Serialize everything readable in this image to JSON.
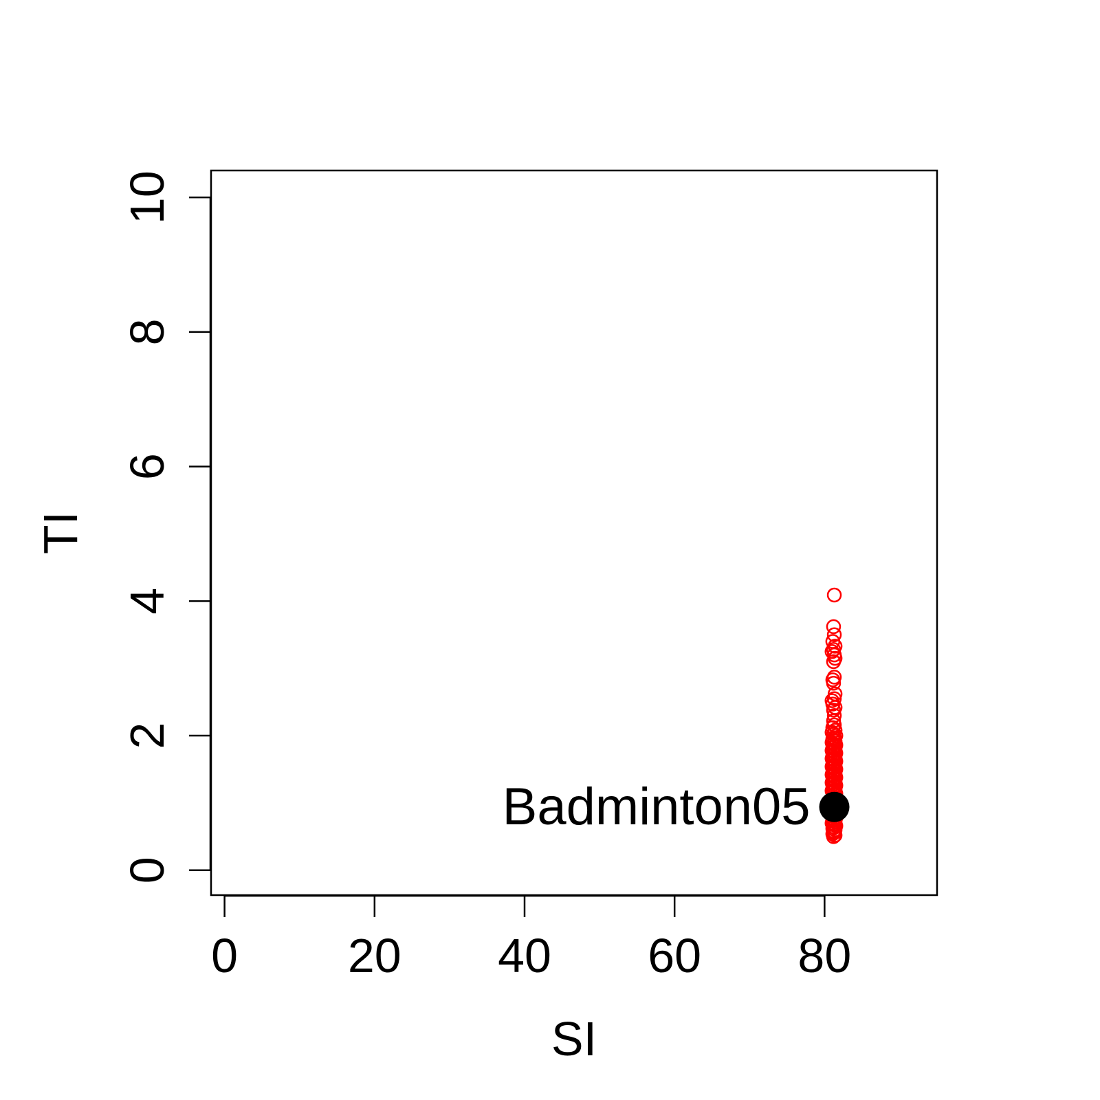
{
  "chart_data": {
    "type": "scatter",
    "title": "",
    "xlabel": "SI",
    "ylabel": "TI",
    "xlim": [
      -1.8,
      95
    ],
    "ylim": [
      -0.37,
      10.4
    ],
    "x_ticks": [
      0,
      20,
      40,
      60,
      80
    ],
    "x_tick_labels": [
      "0",
      "20",
      "40",
      "60",
      "80"
    ],
    "y_ticks": [
      0,
      2,
      4,
      6,
      8,
      10
    ],
    "y_tick_labels": [
      "0",
      "2",
      "4",
      "6",
      "8",
      "10"
    ],
    "grid": false,
    "legend": "none",
    "series": [
      {
        "color": "#ff0000",
        "marker": "open-circle",
        "points": [
          [
            81.3,
            4.09
          ],
          [
            81.2,
            3.62
          ],
          [
            81.3,
            3.5
          ],
          [
            81.1,
            3.4
          ],
          [
            81.4,
            3.33
          ],
          [
            81.2,
            3.28
          ],
          [
            81.0,
            3.25
          ],
          [
            81.3,
            3.2
          ],
          [
            81.4,
            3.15
          ],
          [
            81.2,
            3.1
          ],
          [
            81.3,
            2.87
          ],
          [
            81.1,
            2.83
          ],
          [
            81.2,
            2.78
          ],
          [
            81.4,
            2.62
          ],
          [
            81.3,
            2.55
          ],
          [
            81.0,
            2.52
          ],
          [
            81.1,
            2.47
          ],
          [
            81.4,
            2.42
          ],
          [
            81.2,
            2.38
          ],
          [
            81.3,
            2.3
          ],
          [
            81.2,
            2.22
          ],
          [
            81.3,
            2.16
          ],
          [
            81.1,
            2.12
          ],
          [
            81.4,
            2.08
          ],
          [
            81.0,
            2.05
          ],
          [
            81.2,
            2.02
          ],
          [
            81.5,
            2.0
          ],
          [
            81.3,
            1.97
          ],
          [
            81.1,
            1.95
          ],
          [
            81.4,
            1.92
          ],
          [
            81.0,
            1.9
          ],
          [
            81.2,
            1.88
          ],
          [
            81.5,
            1.86
          ],
          [
            81.3,
            1.84
          ],
          [
            81.1,
            1.82
          ],
          [
            81.4,
            1.8
          ],
          [
            81.0,
            1.78
          ],
          [
            81.2,
            1.76
          ],
          [
            81.5,
            1.74
          ],
          [
            81.3,
            1.72
          ],
          [
            81.1,
            1.7
          ],
          [
            81.4,
            1.68
          ],
          [
            81.0,
            1.66
          ],
          [
            81.2,
            1.64
          ],
          [
            81.5,
            1.62
          ],
          [
            81.3,
            1.6
          ],
          [
            81.1,
            1.58
          ],
          [
            81.4,
            1.56
          ],
          [
            81.0,
            1.54
          ],
          [
            81.2,
            1.52
          ],
          [
            81.5,
            1.5
          ],
          [
            81.3,
            1.48
          ],
          [
            81.1,
            1.46
          ],
          [
            81.4,
            1.44
          ],
          [
            81.0,
            1.42
          ],
          [
            81.2,
            1.4
          ],
          [
            81.5,
            1.38
          ],
          [
            81.3,
            1.36
          ],
          [
            81.1,
            1.34
          ],
          [
            81.4,
            1.32
          ],
          [
            81.0,
            1.3
          ],
          [
            81.2,
            1.28
          ],
          [
            81.5,
            1.26
          ],
          [
            81.3,
            1.24
          ],
          [
            81.1,
            1.22
          ],
          [
            81.4,
            1.2
          ],
          [
            81.0,
            1.18
          ],
          [
            81.2,
            1.16
          ],
          [
            81.5,
            1.14
          ],
          [
            81.3,
            1.12
          ],
          [
            81.1,
            1.1
          ],
          [
            81.4,
            1.08
          ],
          [
            81.0,
            1.06
          ],
          [
            81.2,
            1.04
          ],
          [
            81.5,
            1.02
          ],
          [
            81.3,
            1.0
          ],
          [
            81.1,
            0.98
          ],
          [
            81.4,
            0.96
          ],
          [
            81.0,
            0.94
          ],
          [
            81.2,
            0.92
          ],
          [
            81.5,
            0.9
          ],
          [
            81.3,
            0.88
          ],
          [
            81.1,
            0.86
          ],
          [
            81.4,
            0.84
          ],
          [
            81.0,
            0.82
          ],
          [
            81.2,
            0.8
          ],
          [
            81.5,
            0.78
          ],
          [
            81.3,
            0.76
          ],
          [
            81.1,
            0.74
          ],
          [
            81.4,
            0.72
          ],
          [
            81.0,
            0.7
          ],
          [
            81.2,
            0.68
          ],
          [
            81.5,
            0.66
          ],
          [
            81.3,
            0.64
          ],
          [
            81.1,
            0.62
          ],
          [
            81.4,
            0.6
          ],
          [
            81.2,
            0.58
          ],
          [
            81.3,
            0.56
          ],
          [
            81.1,
            0.54
          ],
          [
            81.4,
            0.52
          ],
          [
            81.2,
            0.5
          ]
        ]
      },
      {
        "color": "#000000",
        "marker": "filled-circle",
        "points": [
          [
            81.3,
            0.94
          ]
        ]
      }
    ],
    "annotations": [
      {
        "text": "Badminton05",
        "x": 81.3,
        "y": 0.94,
        "position": "left"
      }
    ]
  }
}
